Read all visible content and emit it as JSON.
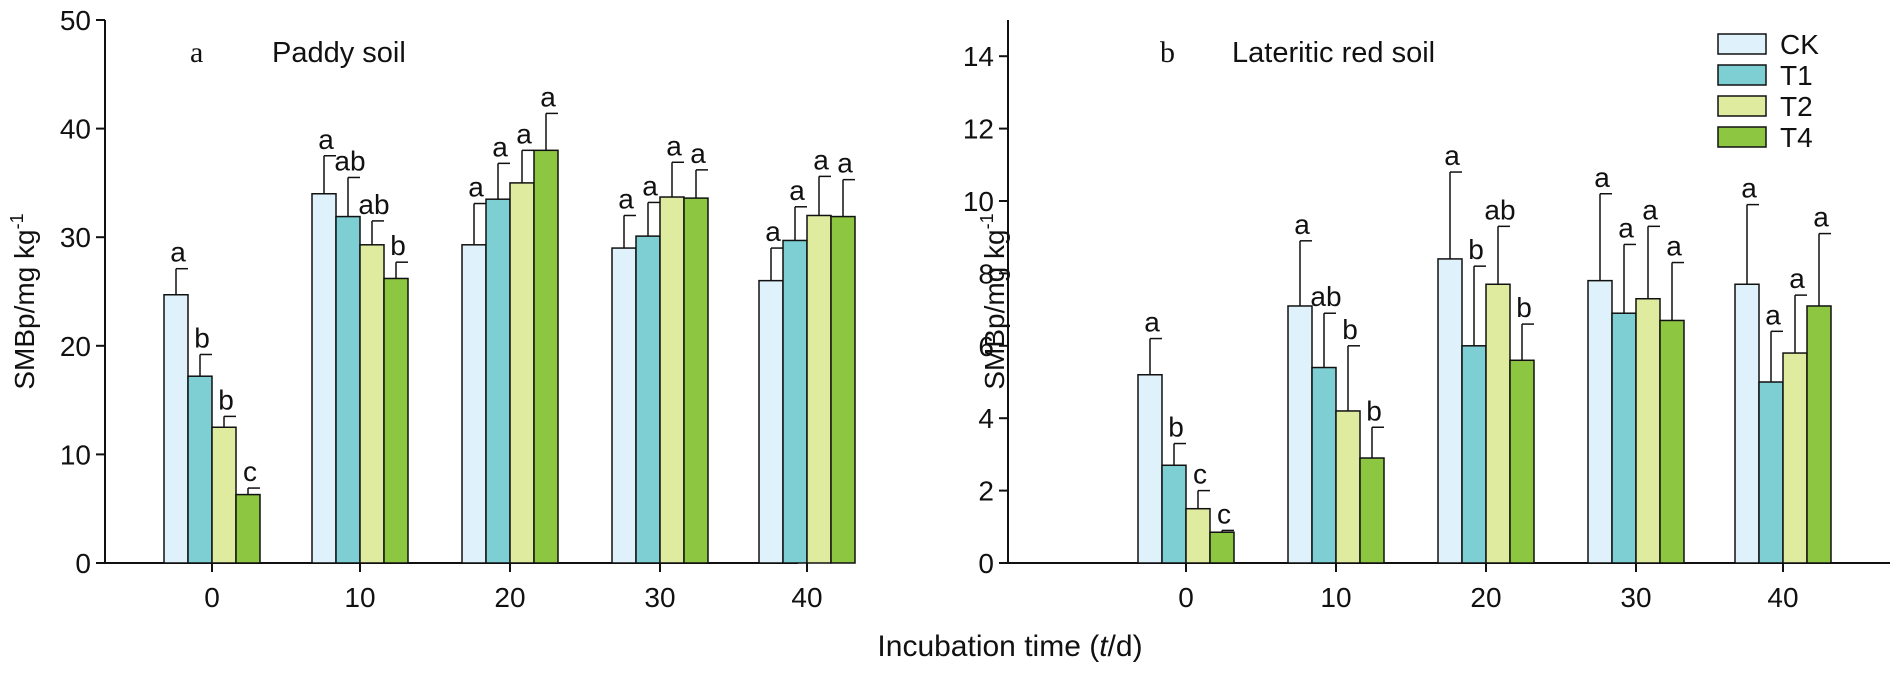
{
  "common_xlabel": {
    "prefix": "Incubation time (",
    "italic": "t",
    "suffix": "/d)"
  },
  "legend": [
    {
      "key": "CK",
      "label": "CK"
    },
    {
      "key": "T1",
      "label": "T1"
    },
    {
      "key": "T2",
      "label": "T2"
    },
    {
      "key": "T4",
      "label": "T4"
    }
  ],
  "colors": {
    "CK": "#dff2fb",
    "T1": "#7ecfd3",
    "T2": "#dfeca0",
    "T4": "#8dc641",
    "outline": "#111111"
  },
  "chart_data": [
    {
      "type": "bar",
      "panel": "a",
      "title": "Paddy soil",
      "ylabel": "SMBp/mg kg",
      "ylabel_sup": "-1",
      "ylim": [
        0,
        50
      ],
      "yticks": [
        0,
        10,
        20,
        30,
        40,
        50
      ],
      "categories": [
        "0",
        "10",
        "20",
        "30",
        "40"
      ],
      "series": [
        {
          "name": "CK",
          "values": [
            24.7,
            34.0,
            29.3,
            29.0,
            26.0
          ],
          "errors": [
            2.4,
            3.5,
            3.8,
            3.0,
            3.0
          ],
          "letters": [
            "a",
            "a",
            "a",
            "a",
            "a"
          ]
        },
        {
          "name": "T1",
          "values": [
            17.2,
            31.9,
            33.5,
            30.1,
            29.7
          ],
          "errors": [
            2.0,
            3.6,
            3.3,
            3.1,
            3.1
          ],
          "letters": [
            "b",
            "ab",
            "a",
            "a",
            "a"
          ]
        },
        {
          "name": "T2",
          "values": [
            12.5,
            29.3,
            35.0,
            33.7,
            32.0
          ],
          "errors": [
            1.0,
            2.2,
            3.0,
            3.2,
            3.6
          ],
          "letters": [
            "b",
            "ab",
            "a",
            "a",
            "a"
          ]
        },
        {
          "name": "T4",
          "values": [
            6.3,
            26.2,
            38.0,
            33.6,
            31.9
          ],
          "errors": [
            0.6,
            1.5,
            3.4,
            2.6,
            3.4
          ],
          "letters": [
            "c",
            "b",
            "a",
            "a",
            "a"
          ]
        }
      ]
    },
    {
      "type": "bar",
      "panel": "b",
      "title": "Lateritic red soil",
      "ylabel": "SMBp/mg kg",
      "ylabel_sup": "-1",
      "ylim": [
        0,
        15
      ],
      "yticks": [
        0,
        2,
        4,
        6,
        8,
        10,
        12,
        14
      ],
      "categories": [
        "0",
        "10",
        "20",
        "30",
        "40"
      ],
      "series": [
        {
          "name": "CK",
          "values": [
            5.2,
            7.1,
            8.4,
            7.8,
            7.7
          ],
          "errors": [
            1.0,
            1.8,
            2.4,
            2.4,
            2.2
          ],
          "letters": [
            "a",
            "a",
            "a",
            "a",
            "a"
          ]
        },
        {
          "name": "T1",
          "values": [
            2.7,
            5.4,
            6.0,
            6.9,
            5.0
          ],
          "errors": [
            0.6,
            1.5,
            2.2,
            1.9,
            1.4
          ],
          "letters": [
            "b",
            "ab",
            "b",
            "a",
            "a"
          ]
        },
        {
          "name": "T2",
          "values": [
            1.5,
            4.2,
            7.7,
            7.3,
            5.8
          ],
          "errors": [
            0.5,
            1.8,
            1.6,
            2.0,
            1.6
          ],
          "letters": [
            "c",
            "b",
            "ab",
            "a",
            "a"
          ]
        },
        {
          "name": "T4",
          "values": [
            0.85,
            2.9,
            5.6,
            6.7,
            7.1
          ],
          "errors": [
            0.05,
            0.85,
            1.0,
            1.6,
            2.0
          ],
          "letters": [
            "c",
            "b",
            "b",
            "a",
            "a"
          ]
        }
      ]
    }
  ]
}
